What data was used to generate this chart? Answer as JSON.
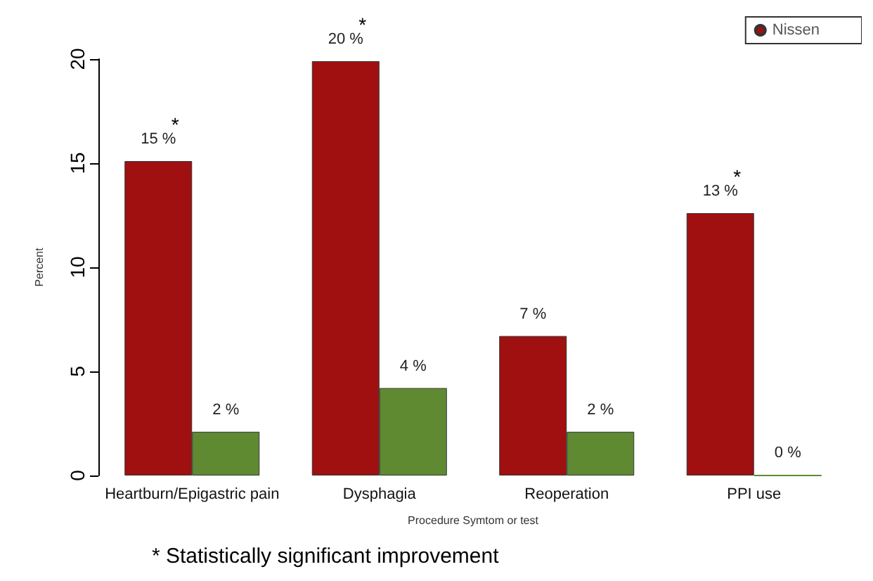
{
  "chart_data": {
    "type": "bar",
    "ylabel": "Percent",
    "xlabel": "Procedure Symtom or test",
    "categories": [
      "Heartburn/Epigastric pain",
      "Dysphagia",
      "Reoperation",
      "PPI use"
    ],
    "series": [
      {
        "name": "Nissen",
        "color": "#a01010",
        "values": [
          15.1,
          19.9,
          6.7,
          12.6
        ],
        "value_labels": [
          "15 %",
          "20 %",
          "7 %",
          "13 %"
        ]
      },
      {
        "color": "#5f8a32",
        "values": [
          2.1,
          4.2,
          2.1,
          0
        ],
        "value_labels": [
          "2 %",
          "4 %",
          "2 %",
          "0 %"
        ]
      }
    ],
    "ylim": [
      0,
      20
    ],
    "yticks": [
      0,
      5,
      10,
      15,
      20
    ],
    "grid": false,
    "legend": "top right",
    "annotations": [
      {
        "text": "*",
        "x": "Heartburn/Epigastric pain",
        "y": 15.1
      },
      {
        "text": "*",
        "x": "Dysphagia",
        "y": 19.9
      },
      {
        "text": "*",
        "x": "PPI use",
        "y": 12.6
      },
      "* Statistically significant improvement"
    ]
  }
}
